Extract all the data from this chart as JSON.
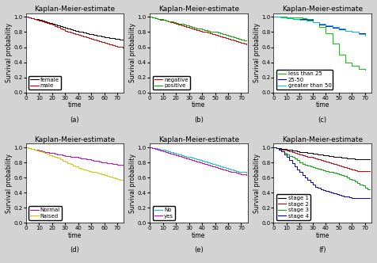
{
  "title": "Kaplan-Meier-estimate",
  "xlabel": "time",
  "ylabel": "Survival probability",
  "xlim": [
    0,
    75
  ],
  "ylim": [
    0.0,
    1.05
  ],
  "yticks": [
    0.0,
    0.2,
    0.4,
    0.6,
    0.8,
    1.0
  ],
  "xticks": [
    0,
    10,
    20,
    30,
    40,
    50,
    60,
    70
  ],
  "subplots": [
    "(a)",
    "(b)",
    "(c)",
    "(d)",
    "(e)",
    "(f)"
  ],
  "legend_loc": "lower left",
  "panels": [
    {
      "curves": [
        {
          "label": "female",
          "color": "#000000",
          "x": [
            0,
            2,
            4,
            6,
            8,
            10,
            12,
            14,
            16,
            18,
            20,
            22,
            24,
            26,
            28,
            30,
            32,
            34,
            36,
            38,
            40,
            42,
            44,
            46,
            48,
            50,
            52,
            54,
            56,
            58,
            60,
            62,
            64,
            66,
            68,
            70,
            72,
            74
          ],
          "y": [
            1.0,
            0.99,
            0.98,
            0.97,
            0.97,
            0.96,
            0.95,
            0.94,
            0.93,
            0.92,
            0.91,
            0.9,
            0.89,
            0.88,
            0.87,
            0.86,
            0.85,
            0.84,
            0.83,
            0.82,
            0.81,
            0.8,
            0.79,
            0.78,
            0.77,
            0.77,
            0.76,
            0.75,
            0.75,
            0.74,
            0.73,
            0.73,
            0.72,
            0.72,
            0.71,
            0.71,
            0.7,
            0.7
          ]
        },
        {
          "label": "male",
          "color": "#cc0000",
          "x": [
            0,
            2,
            4,
            6,
            8,
            10,
            12,
            14,
            16,
            18,
            20,
            22,
            24,
            26,
            28,
            30,
            32,
            34,
            36,
            38,
            40,
            42,
            44,
            46,
            48,
            50,
            52,
            54,
            56,
            58,
            60,
            62,
            64,
            66,
            68,
            70,
            72,
            74
          ],
          "y": [
            1.0,
            0.99,
            0.98,
            0.97,
            0.96,
            0.95,
            0.94,
            0.93,
            0.92,
            0.91,
            0.9,
            0.88,
            0.87,
            0.85,
            0.84,
            0.82,
            0.81,
            0.79,
            0.78,
            0.77,
            0.76,
            0.75,
            0.74,
            0.73,
            0.72,
            0.71,
            0.7,
            0.69,
            0.68,
            0.67,
            0.66,
            0.65,
            0.64,
            0.63,
            0.62,
            0.61,
            0.61,
            0.6
          ]
        }
      ]
    },
    {
      "curves": [
        {
          "label": "negative",
          "color": "#cc0000",
          "x": [
            0,
            2,
            4,
            6,
            8,
            10,
            12,
            14,
            16,
            18,
            20,
            22,
            24,
            26,
            28,
            30,
            32,
            34,
            36,
            38,
            40,
            42,
            44,
            46,
            48,
            50,
            52,
            54,
            56,
            58,
            60,
            62,
            64,
            66,
            68,
            70,
            72,
            74
          ],
          "y": [
            1.0,
            0.99,
            0.98,
            0.97,
            0.96,
            0.96,
            0.95,
            0.94,
            0.93,
            0.92,
            0.91,
            0.9,
            0.89,
            0.88,
            0.87,
            0.86,
            0.85,
            0.84,
            0.83,
            0.82,
            0.81,
            0.8,
            0.79,
            0.78,
            0.77,
            0.76,
            0.75,
            0.74,
            0.73,
            0.72,
            0.71,
            0.7,
            0.69,
            0.68,
            0.67,
            0.66,
            0.65,
            0.64
          ]
        },
        {
          "label": "positive",
          "color": "#00aa00",
          "x": [
            0,
            2,
            4,
            6,
            8,
            10,
            12,
            14,
            16,
            18,
            20,
            22,
            24,
            26,
            28,
            30,
            32,
            34,
            36,
            38,
            40,
            42,
            44,
            46,
            48,
            50,
            52,
            54,
            56,
            58,
            60,
            62,
            64,
            66,
            68,
            70,
            72,
            74
          ],
          "y": [
            1.0,
            0.99,
            0.98,
            0.97,
            0.97,
            0.96,
            0.95,
            0.94,
            0.94,
            0.93,
            0.92,
            0.91,
            0.91,
            0.9,
            0.89,
            0.88,
            0.87,
            0.86,
            0.85,
            0.85,
            0.84,
            0.83,
            0.82,
            0.81,
            0.81,
            0.8,
            0.79,
            0.78,
            0.77,
            0.76,
            0.75,
            0.74,
            0.73,
            0.72,
            0.71,
            0.7,
            0.69,
            0.69
          ]
        }
      ]
    },
    {
      "curves": [
        {
          "label": "less than 25",
          "color": "#00cc00",
          "x": [
            0,
            5,
            10,
            15,
            20,
            22,
            25,
            30,
            35,
            40,
            45,
            50,
            55,
            60,
            65,
            70
          ],
          "y": [
            1.0,
            1.0,
            0.99,
            0.99,
            0.99,
            0.98,
            0.97,
            0.93,
            0.87,
            0.78,
            0.65,
            0.5,
            0.4,
            0.35,
            0.31,
            0.3
          ]
        },
        {
          "label": "25-50",
          "color": "#0000cc",
          "x": [
            0,
            5,
            10,
            15,
            20,
            25,
            30,
            35,
            40,
            45,
            50,
            55,
            60,
            65,
            70
          ],
          "y": [
            1.0,
            0.99,
            0.98,
            0.97,
            0.97,
            0.96,
            0.93,
            0.9,
            0.88,
            0.86,
            0.84,
            0.82,
            0.8,
            0.78,
            0.76
          ]
        },
        {
          "label": "greater than 50",
          "color": "#00cccc",
          "x": [
            0,
            5,
            10,
            15,
            20,
            25,
            30,
            35,
            40,
            45,
            50,
            55,
            60,
            65,
            70
          ],
          "y": [
            1.0,
            0.99,
            0.98,
            0.97,
            0.96,
            0.95,
            0.93,
            0.91,
            0.89,
            0.87,
            0.85,
            0.82,
            0.8,
            0.77,
            0.75
          ]
        }
      ]
    },
    {
      "curves": [
        {
          "label": "Normal",
          "color": "#cc00cc",
          "x": [
            0,
            2,
            4,
            6,
            8,
            10,
            12,
            14,
            16,
            18,
            20,
            22,
            24,
            26,
            28,
            30,
            32,
            34,
            36,
            38,
            40,
            42,
            44,
            46,
            48,
            50,
            52,
            54,
            56,
            58,
            60,
            62,
            64,
            66,
            68,
            70,
            72,
            74
          ],
          "y": [
            1.0,
            0.99,
            0.98,
            0.97,
            0.97,
            0.96,
            0.95,
            0.94,
            0.94,
            0.93,
            0.93,
            0.92,
            0.91,
            0.91,
            0.9,
            0.89,
            0.89,
            0.88,
            0.87,
            0.87,
            0.86,
            0.85,
            0.85,
            0.84,
            0.84,
            0.83,
            0.82,
            0.82,
            0.81,
            0.8,
            0.8,
            0.79,
            0.79,
            0.78,
            0.78,
            0.77,
            0.77,
            0.77
          ]
        },
        {
          "label": "Raised",
          "color": "#cccc00",
          "x": [
            0,
            2,
            4,
            6,
            8,
            10,
            12,
            14,
            16,
            18,
            20,
            22,
            24,
            26,
            28,
            30,
            32,
            34,
            36,
            38,
            40,
            42,
            44,
            46,
            48,
            50,
            52,
            54,
            56,
            58,
            60,
            62,
            64,
            66,
            68,
            70,
            72,
            74
          ],
          "y": [
            1.0,
            0.99,
            0.98,
            0.97,
            0.96,
            0.95,
            0.94,
            0.93,
            0.92,
            0.9,
            0.89,
            0.87,
            0.86,
            0.84,
            0.82,
            0.81,
            0.79,
            0.78,
            0.76,
            0.75,
            0.73,
            0.72,
            0.71,
            0.7,
            0.69,
            0.68,
            0.67,
            0.66,
            0.65,
            0.64,
            0.63,
            0.62,
            0.61,
            0.6,
            0.59,
            0.58,
            0.57,
            0.57
          ]
        }
      ]
    },
    {
      "curves": [
        {
          "label": "No",
          "color": "#00cccc",
          "x": [
            0,
            2,
            4,
            6,
            8,
            10,
            12,
            14,
            16,
            18,
            20,
            22,
            24,
            26,
            28,
            30,
            32,
            34,
            36,
            38,
            40,
            42,
            44,
            46,
            48,
            50,
            52,
            54,
            56,
            58,
            60,
            62,
            64,
            66,
            68,
            70,
            72,
            74
          ],
          "y": [
            1.0,
            0.99,
            0.99,
            0.98,
            0.97,
            0.97,
            0.96,
            0.95,
            0.94,
            0.93,
            0.92,
            0.91,
            0.9,
            0.89,
            0.88,
            0.87,
            0.86,
            0.85,
            0.84,
            0.83,
            0.82,
            0.81,
            0.8,
            0.79,
            0.78,
            0.77,
            0.76,
            0.75,
            0.74,
            0.73,
            0.72,
            0.71,
            0.7,
            0.69,
            0.68,
            0.67,
            0.67,
            0.66
          ]
        },
        {
          "label": "yes",
          "color": "#cc00cc",
          "x": [
            0,
            2,
            4,
            6,
            8,
            10,
            12,
            14,
            16,
            18,
            20,
            22,
            24,
            26,
            28,
            30,
            32,
            34,
            36,
            38,
            40,
            42,
            44,
            46,
            48,
            50,
            52,
            54,
            56,
            58,
            60,
            62,
            64,
            66,
            68,
            70,
            72,
            74
          ],
          "y": [
            1.0,
            0.99,
            0.98,
            0.97,
            0.96,
            0.95,
            0.94,
            0.93,
            0.92,
            0.91,
            0.9,
            0.89,
            0.87,
            0.86,
            0.85,
            0.84,
            0.83,
            0.82,
            0.81,
            0.8,
            0.79,
            0.78,
            0.77,
            0.76,
            0.75,
            0.74,
            0.73,
            0.72,
            0.71,
            0.7,
            0.69,
            0.68,
            0.67,
            0.66,
            0.65,
            0.64,
            0.64,
            0.63
          ]
        }
      ]
    },
    {
      "curves": [
        {
          "label": "stage 1",
          "color": "#000000",
          "x": [
            0,
            2,
            4,
            6,
            8,
            10,
            12,
            14,
            16,
            18,
            20,
            22,
            24,
            26,
            28,
            30,
            32,
            34,
            36,
            38,
            40,
            42,
            44,
            46,
            48,
            50,
            52,
            54,
            56,
            58,
            60,
            62,
            64,
            66,
            68,
            70,
            72,
            74
          ],
          "y": [
            1.0,
            0.99,
            0.99,
            0.98,
            0.98,
            0.97,
            0.97,
            0.96,
            0.96,
            0.95,
            0.94,
            0.94,
            0.94,
            0.93,
            0.93,
            0.92,
            0.92,
            0.91,
            0.91,
            0.9,
            0.9,
            0.89,
            0.89,
            0.88,
            0.87,
            0.87,
            0.86,
            0.86,
            0.85,
            0.85,
            0.85,
            0.84,
            0.84,
            0.84,
            0.84,
            0.84,
            0.84,
            0.84
          ]
        },
        {
          "label": "stage 2",
          "color": "#cc0000",
          "x": [
            0,
            2,
            4,
            6,
            8,
            10,
            12,
            14,
            16,
            18,
            20,
            22,
            24,
            26,
            28,
            30,
            32,
            34,
            36,
            38,
            40,
            42,
            44,
            46,
            48,
            50,
            52,
            54,
            56,
            58,
            60,
            62,
            64,
            66,
            68,
            70,
            72,
            74
          ],
          "y": [
            1.0,
            0.99,
            0.98,
            0.97,
            0.97,
            0.96,
            0.95,
            0.94,
            0.93,
            0.92,
            0.91,
            0.9,
            0.89,
            0.88,
            0.87,
            0.86,
            0.85,
            0.84,
            0.83,
            0.82,
            0.81,
            0.8,
            0.79,
            0.78,
            0.77,
            0.76,
            0.75,
            0.74,
            0.73,
            0.72,
            0.71,
            0.7,
            0.69,
            0.69,
            0.69,
            0.69,
            0.69,
            0.69
          ]
        },
        {
          "label": "stage 3",
          "color": "#00aa00",
          "x": [
            0,
            2,
            4,
            6,
            8,
            10,
            12,
            14,
            16,
            18,
            20,
            22,
            24,
            26,
            28,
            30,
            32,
            34,
            36,
            38,
            40,
            42,
            44,
            46,
            48,
            50,
            52,
            54,
            56,
            58,
            60,
            62,
            64,
            66,
            68,
            70,
            72,
            74
          ],
          "y": [
            1.0,
            0.99,
            0.97,
            0.95,
            0.93,
            0.91,
            0.89,
            0.87,
            0.85,
            0.83,
            0.8,
            0.78,
            0.77,
            0.76,
            0.75,
            0.74,
            0.73,
            0.72,
            0.71,
            0.7,
            0.69,
            0.68,
            0.67,
            0.66,
            0.65,
            0.64,
            0.63,
            0.62,
            0.6,
            0.58,
            0.57,
            0.55,
            0.53,
            0.51,
            0.5,
            0.46,
            0.44,
            0.44
          ]
        },
        {
          "label": "stage 4",
          "color": "#0000cc",
          "x": [
            0,
            2,
            4,
            6,
            8,
            10,
            12,
            14,
            16,
            18,
            20,
            22,
            24,
            26,
            28,
            30,
            32,
            34,
            36,
            38,
            40,
            42,
            44,
            46,
            48,
            50,
            52,
            54,
            56,
            58,
            60,
            62,
            64,
            66,
            68,
            70,
            72,
            74
          ],
          "y": [
            1.0,
            0.99,
            0.97,
            0.95,
            0.91,
            0.87,
            0.83,
            0.79,
            0.75,
            0.71,
            0.67,
            0.63,
            0.6,
            0.57,
            0.54,
            0.51,
            0.48,
            0.46,
            0.44,
            0.43,
            0.42,
            0.41,
            0.4,
            0.39,
            0.38,
            0.37,
            0.36,
            0.35,
            0.35,
            0.34,
            0.33,
            0.33,
            0.33,
            0.33,
            0.33,
            0.33,
            0.33,
            0.33
          ]
        }
      ]
    }
  ],
  "bg_color": "#d3d3d3",
  "plot_bg_color": "#ffffff",
  "title_fontsize": 6.5,
  "label_fontsize": 5.5,
  "tick_fontsize": 5,
  "legend_fontsize": 5,
  "subplot_label_fontsize": 6
}
